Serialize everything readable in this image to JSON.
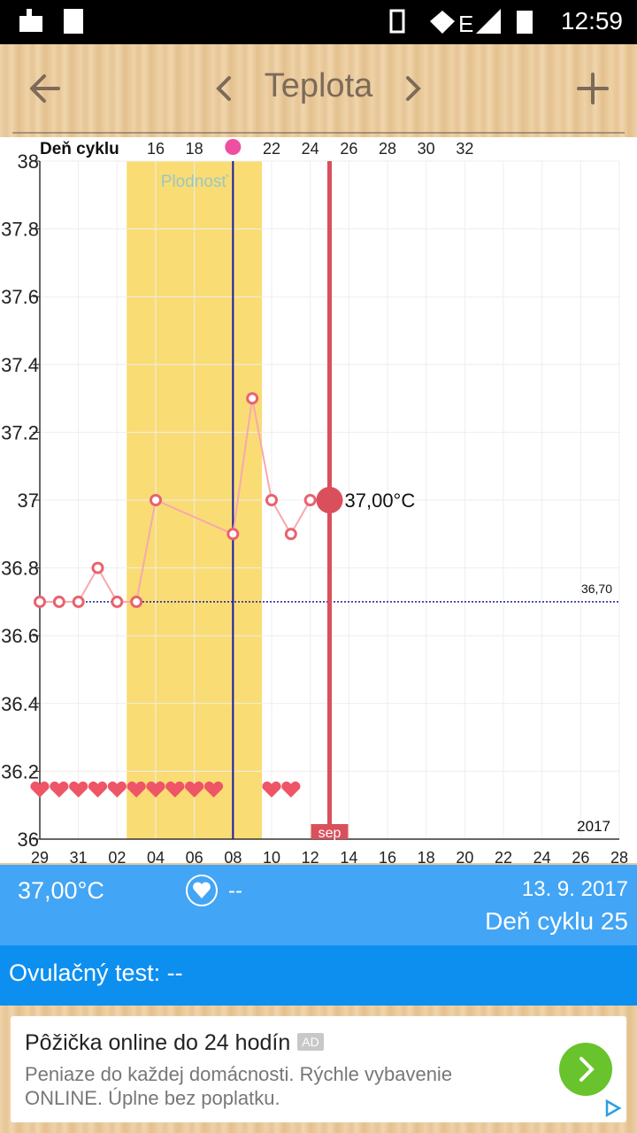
{
  "status_bar": {
    "time": "12:59"
  },
  "header": {
    "title": "Teplota"
  },
  "chart_data": {
    "type": "line",
    "ylim": [
      36,
      38
    ],
    "yticks": [
      36,
      36.2,
      36.4,
      36.6,
      36.8,
      37,
      37.2,
      37.4,
      37.6,
      37.8,
      38
    ],
    "xlim": [
      0,
      30
    ],
    "xticks": [
      {
        "value": 0,
        "label": "29"
      },
      {
        "value": 2,
        "label": "31"
      },
      {
        "value": 4,
        "label": "02"
      },
      {
        "value": 6,
        "label": "04"
      },
      {
        "value": 8,
        "label": "06"
      },
      {
        "value": 10,
        "label": "08"
      },
      {
        "value": 12,
        "label": "10"
      },
      {
        "value": 14,
        "label": "12"
      },
      {
        "value": 16,
        "label": "14"
      },
      {
        "value": 18,
        "label": "16"
      },
      {
        "value": 20,
        "label": "18"
      },
      {
        "value": 22,
        "label": "20"
      },
      {
        "value": 24,
        "label": "22"
      },
      {
        "value": 26,
        "label": "24"
      },
      {
        "value": 28,
        "label": "26"
      },
      {
        "value": 30,
        "label": "28"
      }
    ],
    "top_axis": {
      "label": "Deň cyklu",
      "ticks": [
        {
          "value": 6,
          "label": "16"
        },
        {
          "value": 8,
          "label": "18"
        },
        {
          "value": 12,
          "label": "22"
        },
        {
          "value": 14,
          "label": "24"
        },
        {
          "value": 16,
          "label": "26"
        },
        {
          "value": 18,
          "label": "28"
        },
        {
          "value": 20,
          "label": "30"
        },
        {
          "value": 22,
          "label": "32"
        }
      ],
      "marker": 10
    },
    "series": [
      {
        "name": "Teplota",
        "color": "#e8636f",
        "x": [
          0,
          1,
          2,
          3,
          4,
          5,
          6,
          10,
          11,
          12,
          13,
          14,
          15
        ],
        "values": [
          36.7,
          36.7,
          36.7,
          36.8,
          36.7,
          36.7,
          37,
          36.9,
          37.3,
          37,
          36.9,
          37,
          37
        ]
      }
    ],
    "fertile": {
      "label": "Plodnosť",
      "range": [
        4.5,
        11.5
      ],
      "color": "#f9dc74"
    },
    "ovulation_x": 10,
    "current": {
      "x": 15,
      "label": "37,00°C",
      "month_label": "sep",
      "color": "#d9505c"
    },
    "reference": {
      "value": 36.7,
      "label": "36,70"
    },
    "hearts_x": [
      0,
      1,
      2,
      3,
      4,
      5,
      6,
      7,
      8,
      9,
      12,
      13
    ],
    "year_label": "2017",
    "grid": true
  },
  "info": {
    "temperature": "37,00°C",
    "heart_text": "--",
    "date": "13. 9. 2017",
    "cycle_day": "Deň cyklu 25",
    "ovulation_test": "Ovulačný test: --"
  },
  "ad": {
    "title": "Pôžička online do 24 hodín",
    "badge": "AD",
    "description": "Peniaze do každej domácnosti. Rýchle vybavenie ONLINE. Úplne bez poplatku."
  }
}
